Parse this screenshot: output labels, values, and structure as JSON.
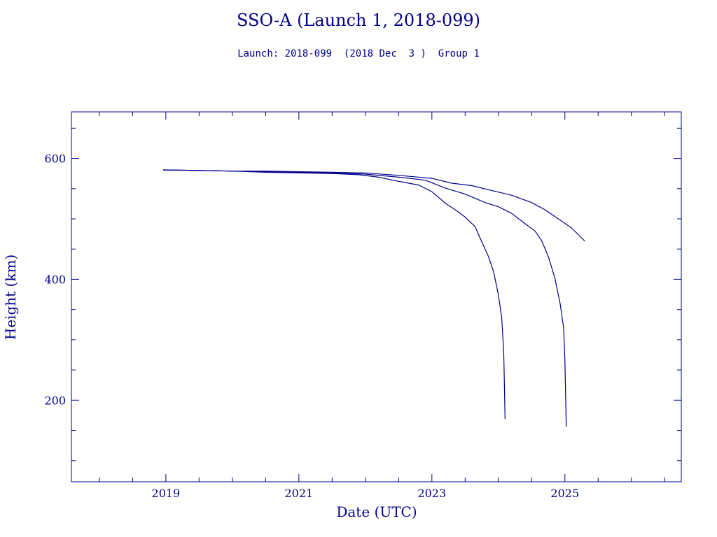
{
  "chart_data": {
    "type": "line",
    "title": "SSO-A (Launch 1, 2018-099)",
    "subtitle": "Launch: 2018-099  (2018 Dec  3 )  Group 1",
    "xlabel": "Date (UTC)",
    "ylabel": "Height (km)",
    "xlim": [
      2017.58,
      2026.75
    ],
    "ylim": [
      65,
      677
    ],
    "x_ticks": [
      "2019",
      "2021",
      "2023",
      "2025"
    ],
    "x_tick_values": [
      2019,
      2021,
      2023,
      2025
    ],
    "y_ticks": [
      "200",
      "400",
      "600"
    ],
    "y_tick_values": [
      200,
      400,
      600
    ],
    "grid": false,
    "color": "#00008b",
    "series": [
      {
        "x": [
          2018.96,
          2019.5,
          2020.0,
          2020.5,
          2021.0,
          2021.5,
          2021.9,
          2022.2,
          2022.5,
          2022.8,
          2023.0,
          2023.2,
          2023.35,
          2023.5,
          2023.65,
          2023.75,
          2023.85,
          2023.93,
          2024.0,
          2024.05,
          2024.08,
          2024.09,
          2024.1
        ],
        "y": [
          581,
          580,
          579,
          577,
          576,
          575,
          573,
          569,
          562,
          556,
          545,
          526,
          515,
          503,
          487,
          462,
          438,
          412,
          374,
          337,
          280,
          230,
          169
        ]
      },
      {
        "x": [
          2018.96,
          2019.5,
          2020.0,
          2020.5,
          2021.0,
          2021.5,
          2022.0,
          2022.5,
          2022.9,
          2023.2,
          2023.5,
          2023.8,
          2024.0,
          2024.2,
          2024.4,
          2024.55,
          2024.65,
          2024.75,
          2024.85,
          2024.93,
          2024.98,
          2025.0,
          2025.02
        ],
        "y": [
          581,
          580,
          579,
          578,
          577,
          576,
          574,
          569,
          564,
          551,
          541,
          527,
          520,
          509,
          492,
          480,
          464,
          438,
          402,
          359,
          320,
          265,
          156
        ]
      },
      {
        "x": [
          2018.96,
          2019.5,
          2020.0,
          2020.5,
          2021.0,
          2021.5,
          2022.0,
          2022.5,
          2023.0,
          2023.3,
          2023.6,
          2023.9,
          2024.2,
          2024.5,
          2024.7,
          2024.9,
          2025.1,
          2025.3
        ],
        "y": [
          581,
          580,
          579,
          579,
          578,
          577,
          576,
          572,
          567,
          559,
          555,
          547,
          539,
          527,
          515,
          500,
          485,
          463
        ]
      }
    ]
  }
}
